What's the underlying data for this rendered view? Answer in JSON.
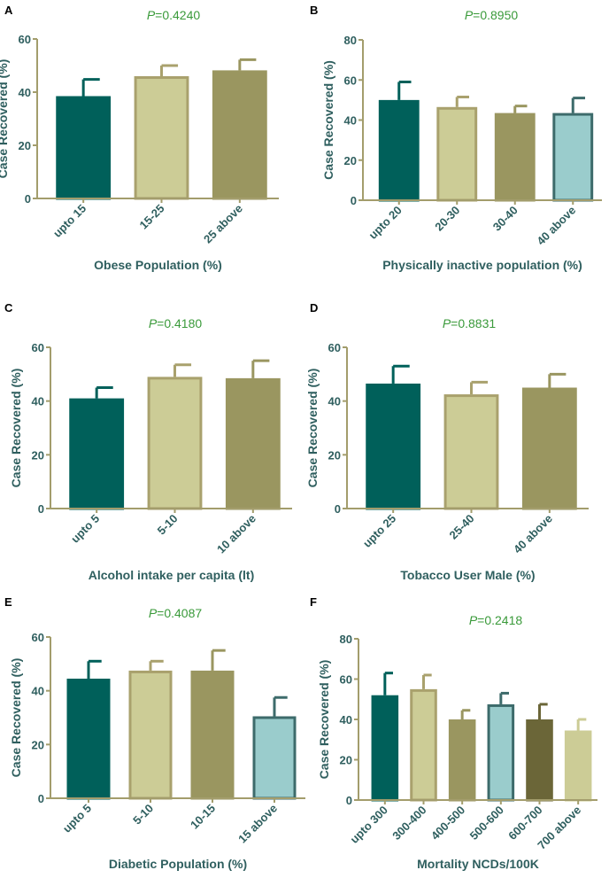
{
  "colors": {
    "teal": "#00605a",
    "beige": "#cccc96",
    "olive": "#9a9660",
    "lightblue": "#9acccc",
    "darkolive": "#6b6638",
    "axis": "#a39d6c",
    "text": "#2f5f5f",
    "pvalue": "#3a9a3a"
  },
  "chart_data": [
    {
      "type": "bar",
      "panel": "A",
      "p_prefix": "P",
      "p_value": "=0.4240",
      "ylabel": "Case Recovered (%)",
      "xlabel": "Obese Population (%)",
      "ylim": [
        0,
        60
      ],
      "yticks": [
        0,
        20,
        40,
        60
      ],
      "categories": [
        "upto 15",
        "15-25",
        "25 above"
      ],
      "values": [
        38.5,
        46,
        48.2
      ],
      "errors": [
        6.3,
        4,
        4
      ],
      "bar_colors": [
        "teal",
        "beige",
        "olive"
      ]
    },
    {
      "type": "bar",
      "panel": "B",
      "p_prefix": "P",
      "p_value": "=0.8950",
      "ylabel": "Case Recovered (%)",
      "xlabel": "Physically inactive population (%)",
      "ylim": [
        0,
        80
      ],
      "yticks": [
        0,
        20,
        40,
        60,
        80
      ],
      "categories": [
        "upto 20",
        "20-30",
        "30-40",
        "40 above"
      ],
      "values": [
        50,
        46.5,
        43.5,
        43.5
      ],
      "errors": [
        9,
        5,
        3.5,
        7.5
      ],
      "bar_colors": [
        "teal",
        "beige",
        "olive",
        "lightblue"
      ]
    },
    {
      "type": "bar",
      "panel": "C",
      "p_prefix": "P",
      "p_value": "=0.4180",
      "ylabel": "Case Recovered (%)",
      "xlabel": "Alcohol intake per capita (lt)",
      "ylim": [
        0,
        60
      ],
      "yticks": [
        0,
        20,
        40,
        60
      ],
      "categories": [
        "upto 5",
        "5-10",
        "10 above"
      ],
      "values": [
        41,
        49,
        48.5
      ],
      "errors": [
        4,
        4.5,
        6.5
      ],
      "bar_colors": [
        "teal",
        "beige",
        "olive"
      ]
    },
    {
      "type": "bar",
      "panel": "D",
      "p_prefix": "P",
      "p_value": "=0.8831",
      "ylabel": "Case Recovered (%)",
      "xlabel": "Tobacco User Male (%)",
      "ylim": [
        0,
        60
      ],
      "yticks": [
        0,
        20,
        40,
        60
      ],
      "categories": [
        "upto 25",
        "25-40",
        "40 above"
      ],
      "values": [
        46.5,
        42.5,
        45
      ],
      "errors": [
        6.5,
        4.5,
        5
      ],
      "bar_colors": [
        "teal",
        "beige",
        "olive"
      ]
    },
    {
      "type": "bar",
      "panel": "E",
      "p_prefix": "P",
      "p_value": "=0.4087",
      "ylabel": "Case Recovered (%)",
      "xlabel": "Diabetic Population (%)",
      "ylim": [
        0,
        60
      ],
      "yticks": [
        0,
        20,
        40,
        60
      ],
      "categories": [
        "upto 5",
        "5-10",
        "10-15",
        "15 above"
      ],
      "values": [
        44.5,
        47.5,
        47.5,
        30.5
      ],
      "errors": [
        6.5,
        3.5,
        7.5,
        7
      ],
      "bar_colors": [
        "teal",
        "beige",
        "olive",
        "lightblue"
      ]
    },
    {
      "type": "bar",
      "panel": "F",
      "p_prefix": "P",
      "p_value": "=0.2418",
      "ylabel": "Case Recovered (%)",
      "xlabel": "Mortality NCDs/100K",
      "ylim": [
        0,
        80
      ],
      "yticks": [
        0,
        20,
        40,
        60,
        80
      ],
      "categories": [
        "upto 300",
        "300-400",
        "400-500",
        "500-600",
        "600-700",
        "700 above"
      ],
      "values": [
        52,
        55,
        40,
        47.5,
        40,
        34.5
      ],
      "errors": [
        11,
        7,
        4.5,
        5.5,
        7.5,
        5.5
      ],
      "bar_colors": [
        "teal",
        "beige",
        "olive",
        "lightblue",
        "darkolive",
        "beige"
      ]
    }
  ]
}
